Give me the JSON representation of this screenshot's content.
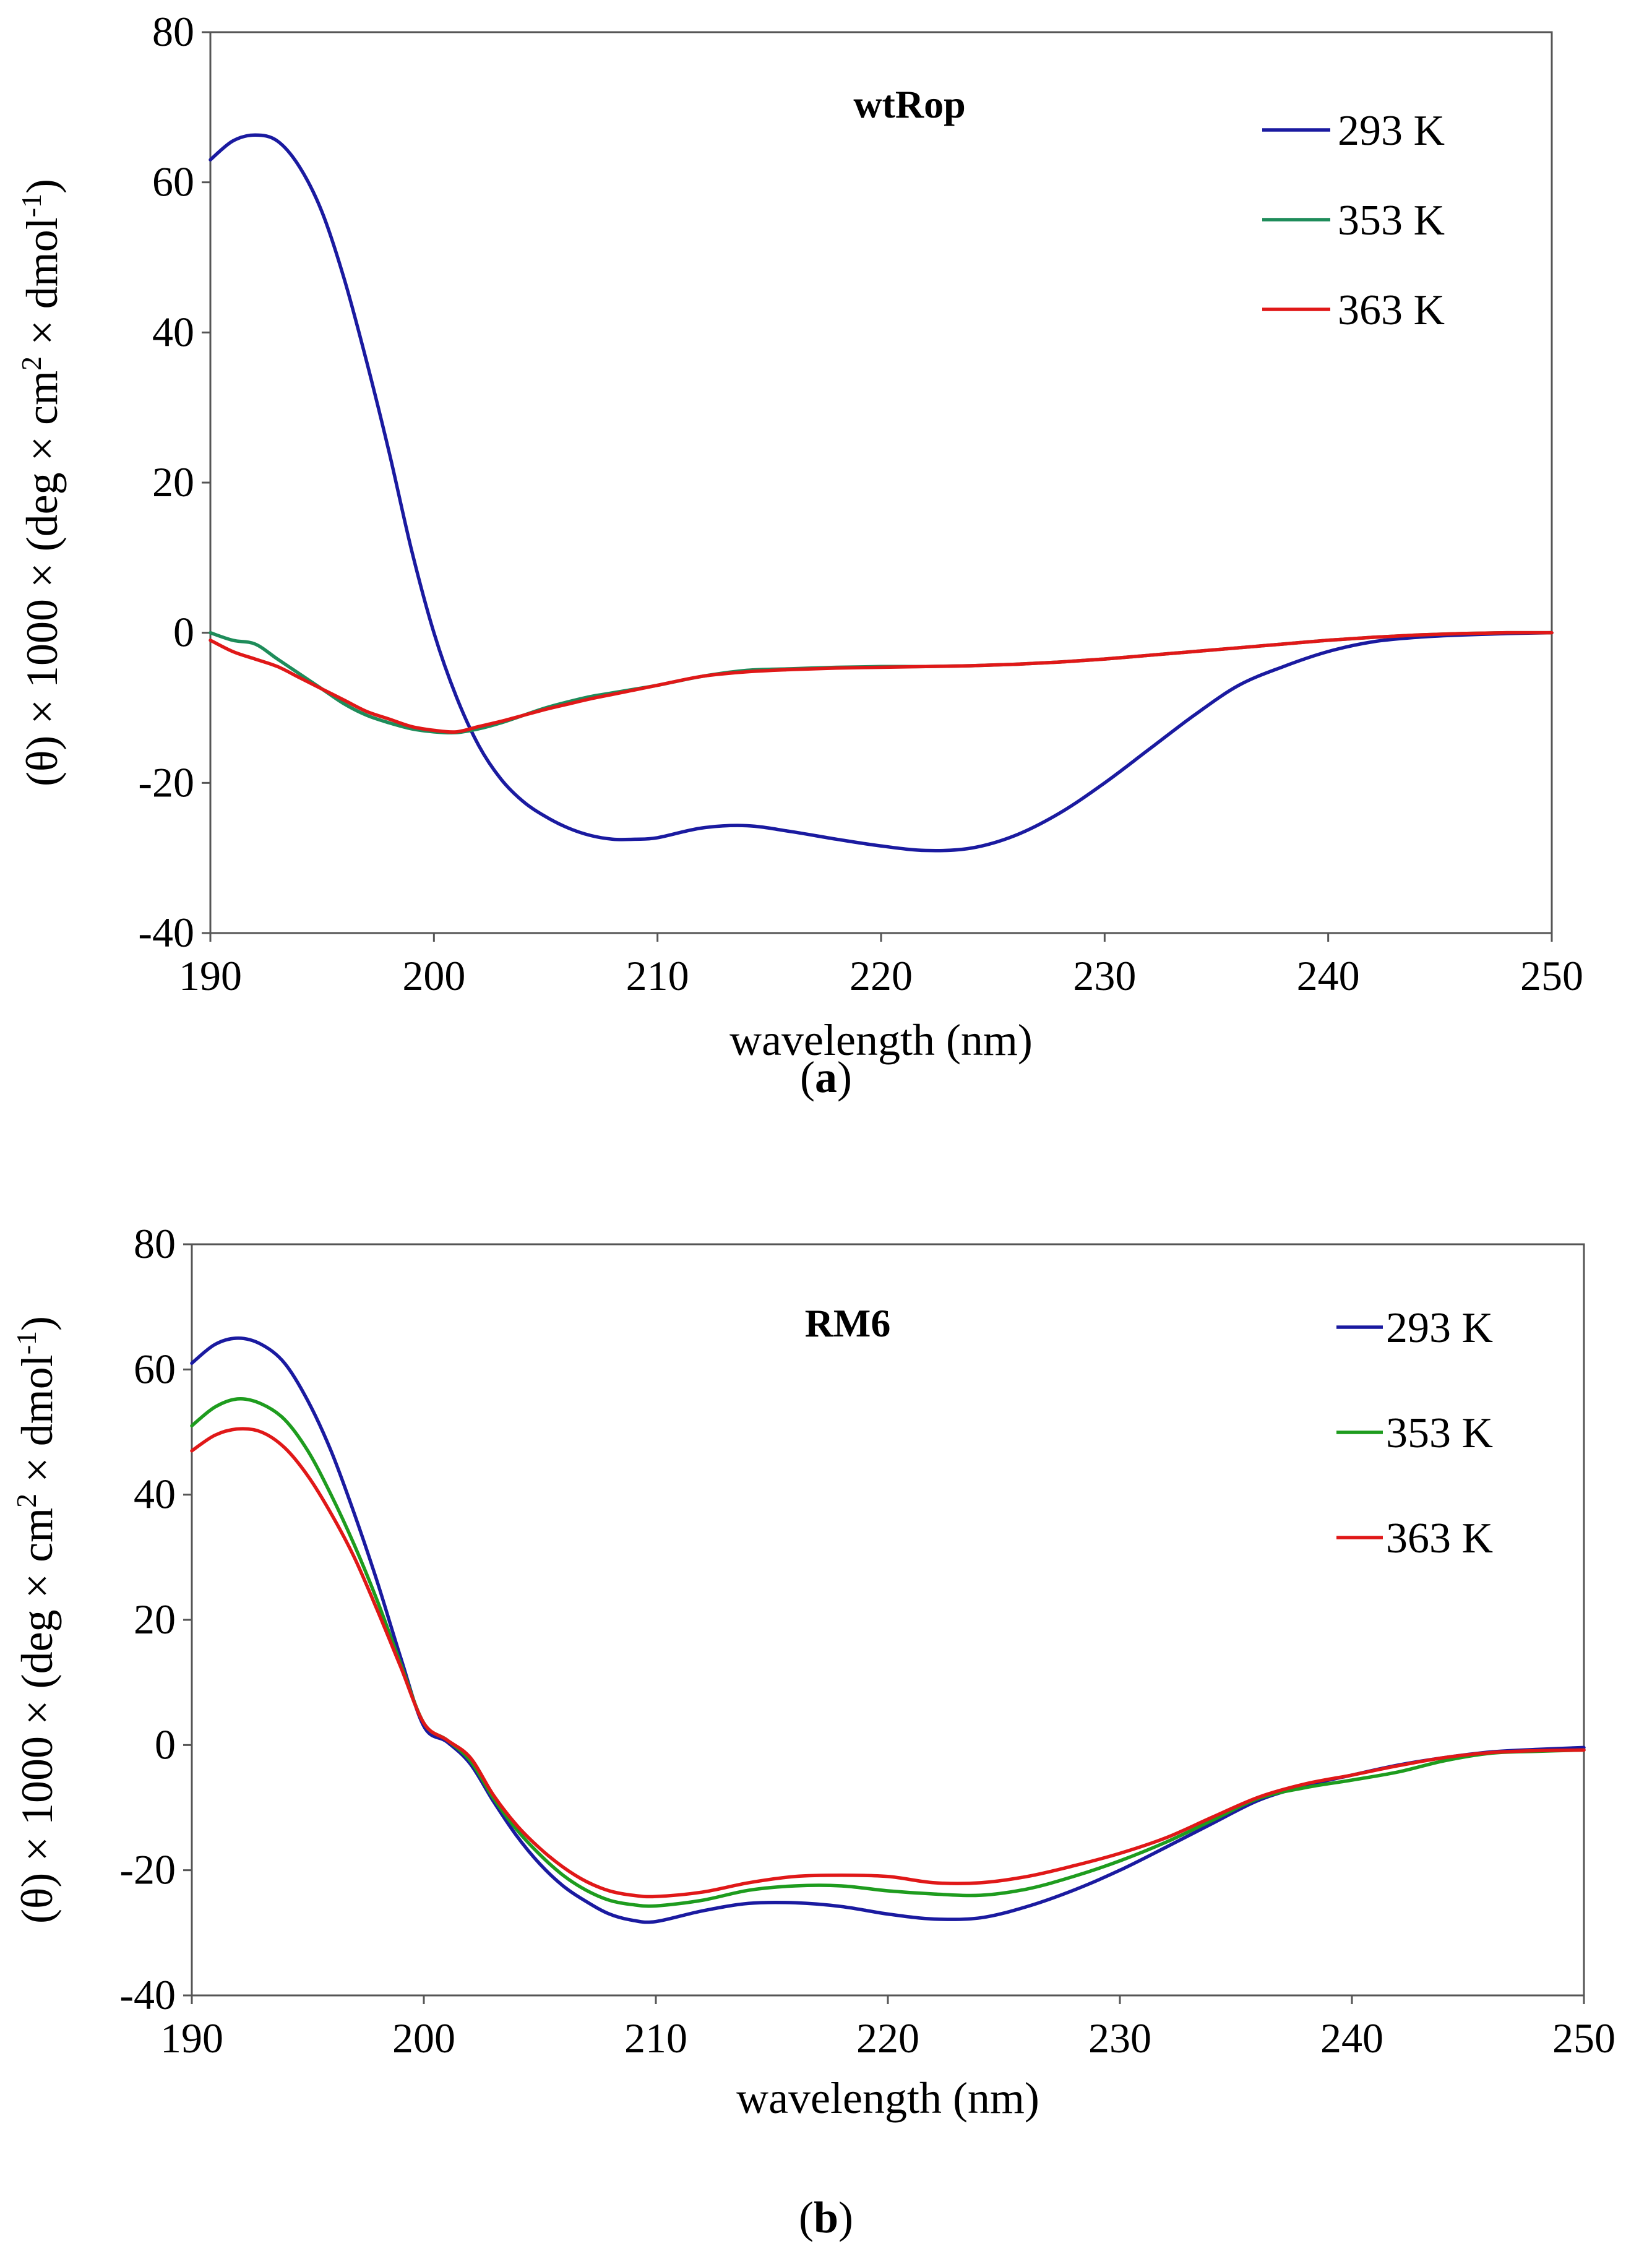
{
  "chart_data": [
    {
      "type": "line",
      "panel_label": "a",
      "title": "wtRop",
      "xlabel": "wavelength (nm)",
      "ylabel_main": "(θ) × 1000 ×  (deg × cm",
      "ylabel_sup1": "2",
      "ylabel_mid": " × dmol",
      "ylabel_sup2": "-1",
      "ylabel_end": ")",
      "xlim": [
        190,
        250
      ],
      "ylim": [
        -40,
        80
      ],
      "xticks": [
        190,
        200,
        210,
        220,
        230,
        240,
        250
      ],
      "yticks": [
        -40,
        -20,
        0,
        20,
        40,
        60,
        80
      ],
      "legend_position": "top-right",
      "series": [
        {
          "name": "293 K",
          "color": "#1a1aa0",
          "x": [
            190,
            191,
            192,
            193,
            194,
            195,
            196,
            197,
            198,
            199,
            200,
            201,
            202,
            203,
            204,
            205,
            206,
            207,
            208,
            209,
            210,
            212,
            214,
            216,
            218,
            220,
            222,
            224,
            226,
            228,
            230,
            232,
            234,
            236,
            238,
            240,
            242,
            244,
            246,
            248,
            250
          ],
          "y": [
            63,
            65.5,
            66.3,
            65.5,
            62,
            56,
            47,
            36,
            24,
            11,
            0,
            -8.5,
            -15,
            -19.5,
            -22.5,
            -24.5,
            -26,
            -27,
            -27.5,
            -27.5,
            -27.3,
            -26,
            -25.7,
            -26.5,
            -27.5,
            -28.4,
            -29,
            -28.7,
            -27,
            -24,
            -20,
            -15.5,
            -11,
            -7,
            -4.5,
            -2.5,
            -1.2,
            -0.6,
            -0.3,
            -0.1,
            0
          ]
        },
        {
          "name": "353 K",
          "color": "#1e8c5a",
          "x": [
            190,
            191,
            192,
            193,
            194,
            195,
            196,
            197,
            198,
            199,
            200,
            201,
            202,
            203,
            204,
            205,
            206,
            207,
            208,
            209,
            210,
            212,
            214,
            216,
            218,
            220,
            222,
            224,
            226,
            228,
            230,
            232,
            234,
            236,
            238,
            240,
            242,
            244,
            246,
            248,
            250
          ],
          "y": [
            0,
            -1,
            -1.5,
            -3.5,
            -5.5,
            -7.5,
            -9.5,
            -11,
            -12,
            -12.8,
            -13.2,
            -13.3,
            -12.8,
            -12,
            -11,
            -10,
            -9.2,
            -8.5,
            -8,
            -7.5,
            -7,
            -5.8,
            -5,
            -4.8,
            -4.6,
            -4.5,
            -4.5,
            -4.4,
            -4.2,
            -3.9,
            -3.5,
            -3,
            -2.5,
            -2,
            -1.5,
            -1,
            -0.6,
            -0.3,
            -0.1,
            0,
            0
          ]
        },
        {
          "name": "363 K",
          "color": "#e01818",
          "x": [
            190,
            191,
            192,
            193,
            194,
            195,
            196,
            197,
            198,
            199,
            200,
            201,
            202,
            203,
            204,
            205,
            206,
            207,
            208,
            209,
            210,
            212,
            214,
            216,
            218,
            220,
            222,
            224,
            226,
            228,
            230,
            232,
            234,
            236,
            238,
            240,
            242,
            244,
            246,
            248,
            250
          ],
          "y": [
            -1,
            -2.5,
            -3.5,
            -4.5,
            -6,
            -7.5,
            -9,
            -10.5,
            -11.5,
            -12.5,
            -13,
            -13.2,
            -12.5,
            -11.8,
            -11,
            -10.2,
            -9.5,
            -8.8,
            -8.2,
            -7.6,
            -7,
            -5.8,
            -5.2,
            -4.9,
            -4.7,
            -4.6,
            -4.5,
            -4.4,
            -4.2,
            -3.9,
            -3.5,
            -3,
            -2.5,
            -2,
            -1.5,
            -1,
            -0.6,
            -0.3,
            -0.1,
            0,
            0
          ]
        }
      ]
    },
    {
      "type": "line",
      "panel_label": "b",
      "title": "RM6",
      "xlabel": "wavelength (nm)",
      "ylabel_main": "(θ) × 1000 ×  (deg × cm",
      "ylabel_sup1": "2",
      "ylabel_mid": " × dmol",
      "ylabel_sup2": "-1",
      "ylabel_end": ")",
      "xlim": [
        190,
        250
      ],
      "ylim": [
        -40,
        80
      ],
      "xticks": [
        190,
        200,
        210,
        220,
        230,
        240,
        250
      ],
      "yticks": [
        -40,
        -20,
        0,
        20,
        40,
        60,
        80
      ],
      "legend_position": "top-right",
      "series": [
        {
          "name": "293 K",
          "color": "#1a1aa0",
          "x": [
            190,
            191,
            192,
            193,
            194,
            195,
            196,
            197,
            198,
            199,
            200,
            201,
            202,
            203,
            204,
            205,
            206,
            207,
            208,
            209,
            210,
            212,
            214,
            216,
            218,
            220,
            222,
            224,
            226,
            228,
            230,
            232,
            234,
            236,
            238,
            240,
            242,
            244,
            246,
            248,
            250
          ],
          "y": [
            61,
            64,
            65,
            64,
            61,
            55,
            47,
            37,
            26,
            14,
            3,
            0.5,
            -3,
            -9,
            -14.5,
            -19,
            -22.5,
            -25,
            -27,
            -28,
            -28.2,
            -26.5,
            -25.3,
            -25.2,
            -25.8,
            -27,
            -27.8,
            -27.6,
            -25.8,
            -23.2,
            -20,
            -16.3,
            -12.5,
            -8.8,
            -6.5,
            -4.8,
            -3.2,
            -2,
            -1.1,
            -0.7,
            -0.4
          ]
        },
        {
          "name": "353 K",
          "color": "#1e9c1e",
          "x": [
            190,
            191,
            192,
            193,
            194,
            195,
            196,
            197,
            198,
            199,
            200,
            201,
            202,
            203,
            204,
            205,
            206,
            207,
            208,
            209,
            210,
            212,
            214,
            216,
            218,
            220,
            222,
            224,
            226,
            228,
            230,
            232,
            234,
            236,
            238,
            240,
            242,
            244,
            246,
            248,
            250
          ],
          "y": [
            51,
            54,
            55.3,
            54.5,
            52,
            47,
            40,
            32,
            23,
            13,
            3.5,
            0.8,
            -2.5,
            -8.5,
            -13.5,
            -17.5,
            -20.8,
            -23.2,
            -24.8,
            -25.5,
            -25.7,
            -24.8,
            -23.2,
            -22.5,
            -22.5,
            -23.3,
            -23.8,
            -24,
            -23,
            -21,
            -18.5,
            -15.5,
            -12,
            -8.5,
            -6.8,
            -5.6,
            -4.3,
            -2.5,
            -1.3,
            -1,
            -0.8
          ]
        },
        {
          "name": "363 K",
          "color": "#e01818",
          "x": [
            190,
            191,
            192,
            193,
            194,
            195,
            196,
            197,
            198,
            199,
            200,
            201,
            202,
            203,
            204,
            205,
            206,
            207,
            208,
            209,
            210,
            212,
            214,
            216,
            218,
            220,
            222,
            224,
            226,
            228,
            230,
            232,
            234,
            236,
            238,
            240,
            242,
            244,
            246,
            248,
            250
          ],
          "y": [
            47,
            49.5,
            50.5,
            50,
            47.5,
            43,
            37,
            30,
            21.5,
            12.5,
            3.5,
            0.8,
            -2,
            -8,
            -12.8,
            -16.5,
            -19.5,
            -21.8,
            -23.3,
            -24,
            -24.2,
            -23.5,
            -22,
            -21,
            -20.8,
            -21,
            -22,
            -22,
            -21,
            -19.3,
            -17.3,
            -14.8,
            -11.5,
            -8.3,
            -6.2,
            -4.8,
            -3.3,
            -2,
            -1.2,
            -0.9,
            -0.8
          ]
        }
      ]
    }
  ]
}
